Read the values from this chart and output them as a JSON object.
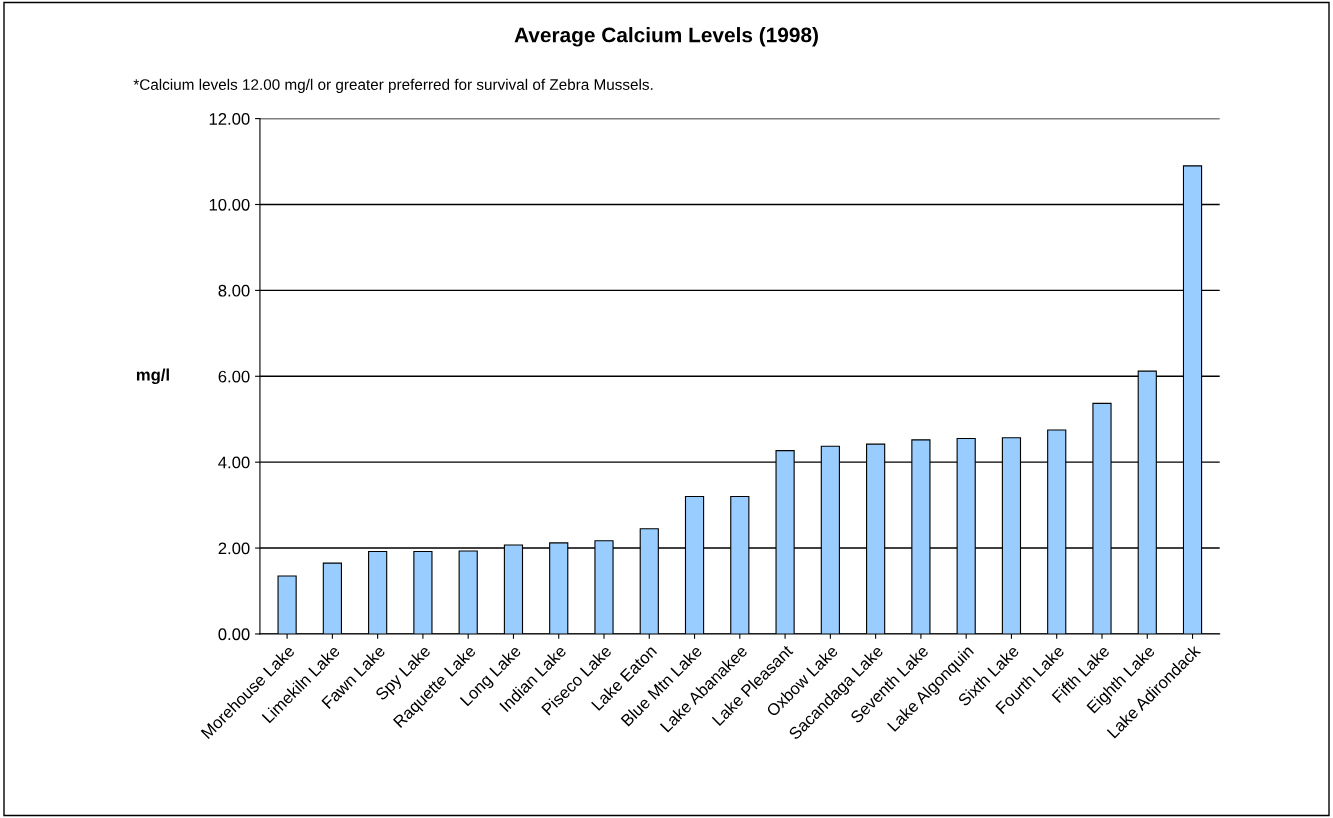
{
  "chart_data": {
    "type": "bar",
    "title": "Average Calcium Levels (1998)",
    "annotations": [
      "*Calcium levels 12.00 mg/l or greater preferred for survival of Zebra Mussels."
    ],
    "ylabel": "mg/l",
    "categories": [
      "Morehouse Lake",
      "Limekiln Lake",
      "Fawn Lake",
      "Spy Lake",
      "Raquette Lake",
      "Long Lake",
      "Indian Lake",
      "Piseco Lake",
      "Lake Eaton",
      "Blue Mtn Lake",
      "Lake Abanakee",
      "Lake Pleasant",
      "Oxbow Lake",
      "Sacandaga Lake",
      "Seventh Lake",
      "Lake Algonquin",
      "Sixth Lake",
      "Fourth Lake",
      "Fifth Lake",
      "Eighth Lake",
      "Lake Adirondack"
    ],
    "values": [
      1.35,
      1.65,
      1.92,
      1.92,
      1.93,
      2.07,
      2.12,
      2.17,
      2.45,
      3.2,
      3.2,
      4.27,
      4.37,
      4.42,
      4.52,
      4.55,
      4.57,
      4.75,
      5.37,
      6.12,
      10.9
    ],
    "color": "#99ccff",
    "ylim": [
      0,
      12
    ],
    "yticks": [
      {
        "value": 0,
        "label": "0.00"
      },
      {
        "value": 2,
        "label": "2.00"
      },
      {
        "value": 4,
        "label": "4.00"
      },
      {
        "value": 6,
        "label": "6.00"
      },
      {
        "value": 8,
        "label": "8.00"
      },
      {
        "value": 10,
        "label": "10.00"
      },
      {
        "value": 12,
        "label": "12.00"
      }
    ],
    "grid": "y",
    "legend": false
  }
}
